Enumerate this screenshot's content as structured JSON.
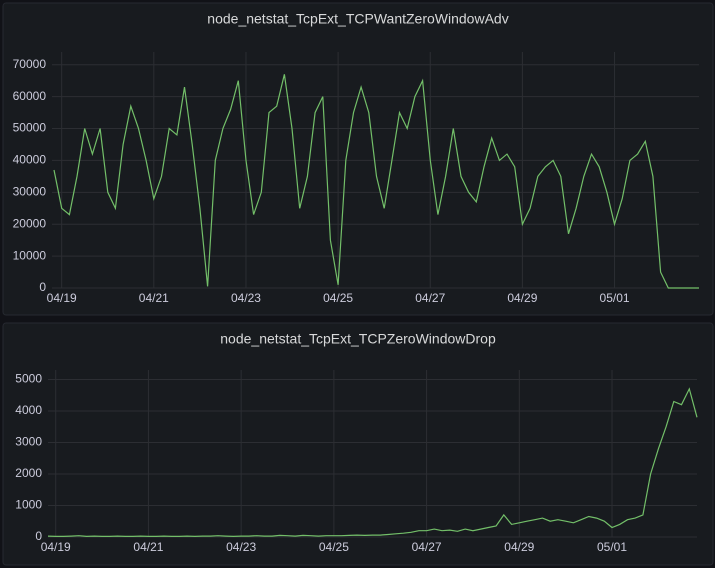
{
  "chart_data": [
    {
      "type": "line",
      "title": "node_netstat_TcpExt_TCPWantZeroWindowAdv",
      "categories": [
        null,
        "04/19",
        null,
        null,
        null,
        null,
        null,
        null,
        null,
        null,
        null,
        null,
        null,
        "04/21",
        null,
        null,
        null,
        null,
        null,
        null,
        null,
        null,
        null,
        null,
        null,
        "04/23",
        null,
        null,
        null,
        null,
        null,
        null,
        null,
        null,
        null,
        null,
        null,
        "04/25",
        null,
        null,
        null,
        null,
        null,
        null,
        null,
        null,
        null,
        null,
        null,
        "04/27",
        null,
        null,
        null,
        null,
        null,
        null,
        null,
        null,
        null,
        null,
        null,
        "04/29",
        null,
        null,
        null,
        null,
        null,
        null,
        null,
        null,
        null,
        null,
        null,
        "05/01",
        null,
        null,
        null,
        null,
        null,
        null,
        null,
        null,
        null,
        null,
        null
      ],
      "values": [
        37000,
        25000,
        23000,
        35000,
        50000,
        42000,
        50000,
        30000,
        25000,
        45000,
        57000,
        50000,
        40000,
        28000,
        35000,
        50000,
        48000,
        63000,
        45000,
        25000,
        500,
        40000,
        50000,
        56000,
        65000,
        40000,
        23000,
        30000,
        55000,
        57000,
        67000,
        50000,
        25000,
        35000,
        55000,
        60000,
        15000,
        1000,
        40000,
        55000,
        63000,
        55000,
        35000,
        25000,
        40000,
        55000,
        50000,
        60000,
        65000,
        40000,
        23000,
        35000,
        50000,
        35000,
        30000,
        27000,
        38000,
        47000,
        40000,
        42000,
        38000,
        20000,
        25000,
        35000,
        38000,
        40000,
        35000,
        17000,
        25000,
        35000,
        42000,
        38000,
        30000,
        20000,
        28000,
        40000,
        42000,
        46000,
        35000,
        5000,
        0,
        0,
        0,
        0,
        0
      ],
      "color": "#73bf69",
      "ylim": [
        0,
        74000
      ],
      "yticks": [
        0,
        10000,
        20000,
        30000,
        40000,
        50000,
        60000,
        70000
      ],
      "grid": true
    },
    {
      "type": "line",
      "title": "node_netstat_TcpExt_TCPZeroWindowDrop",
      "categories": [
        null,
        "04/19",
        null,
        null,
        null,
        null,
        null,
        null,
        null,
        null,
        null,
        null,
        null,
        "04/21",
        null,
        null,
        null,
        null,
        null,
        null,
        null,
        null,
        null,
        null,
        null,
        "04/23",
        null,
        null,
        null,
        null,
        null,
        null,
        null,
        null,
        null,
        null,
        null,
        "04/25",
        null,
        null,
        null,
        null,
        null,
        null,
        null,
        null,
        null,
        null,
        null,
        "04/27",
        null,
        null,
        null,
        null,
        null,
        null,
        null,
        null,
        null,
        null,
        null,
        "04/29",
        null,
        null,
        null,
        null,
        null,
        null,
        null,
        null,
        null,
        null,
        null,
        "05/01",
        null,
        null,
        null,
        null,
        null,
        null,
        null,
        null,
        null,
        null,
        null
      ],
      "values": [
        30,
        20,
        20,
        30,
        40,
        20,
        30,
        20,
        20,
        30,
        20,
        20,
        30,
        20,
        20,
        30,
        20,
        20,
        30,
        20,
        30,
        30,
        40,
        30,
        20,
        30,
        30,
        40,
        30,
        30,
        50,
        40,
        30,
        50,
        40,
        30,
        40,
        40,
        40,
        50,
        60,
        50,
        60,
        60,
        80,
        100,
        120,
        150,
        200,
        200,
        250,
        200,
        220,
        180,
        250,
        200,
        250,
        300,
        350,
        700,
        400,
        450,
        500,
        550,
        600,
        500,
        550,
        500,
        450,
        550,
        650,
        600,
        500,
        300,
        400,
        550,
        600,
        700,
        2000,
        2800,
        3500,
        4300,
        4200,
        4700,
        3800
      ],
      "color": "#73bf69",
      "ylim": [
        0,
        5300
      ],
      "yticks": [
        0,
        1000,
        2000,
        3000,
        4000,
        5000
      ],
      "grid": true
    }
  ]
}
